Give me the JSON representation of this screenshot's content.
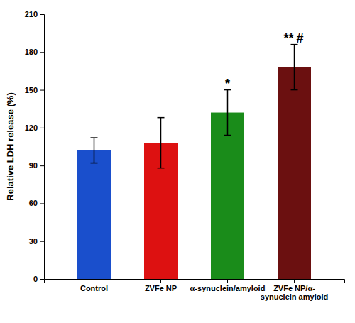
{
  "chart_data": {
    "type": "bar",
    "categories": [
      "Control",
      "ZVFe NP",
      "α-synuclein/amyloid",
      "ZVFe NP/α-\nsynuclein amyloid"
    ],
    "values": [
      102,
      108,
      132,
      168
    ],
    "errors": [
      10,
      20,
      18,
      18
    ],
    "colors": [
      "#1a4fcc",
      "#dd1111",
      "#1a8c1a",
      "#6b1010"
    ],
    "y_label": "Relative LDH release (%)",
    "ylim": [
      0,
      210
    ],
    "yticks": [
      0,
      30,
      60,
      90,
      120,
      150,
      180,
      210
    ],
    "grid": false,
    "annotations": [
      {
        "text": "*",
        "category": "α-synuclein/amyloid"
      },
      {
        "text": "**",
        "category": "ZVFe NP/α-\nsynuclein amyloid"
      },
      {
        "text": "#",
        "category": "ZVFe NP/α-\nsynuclein amyloid"
      }
    ]
  }
}
